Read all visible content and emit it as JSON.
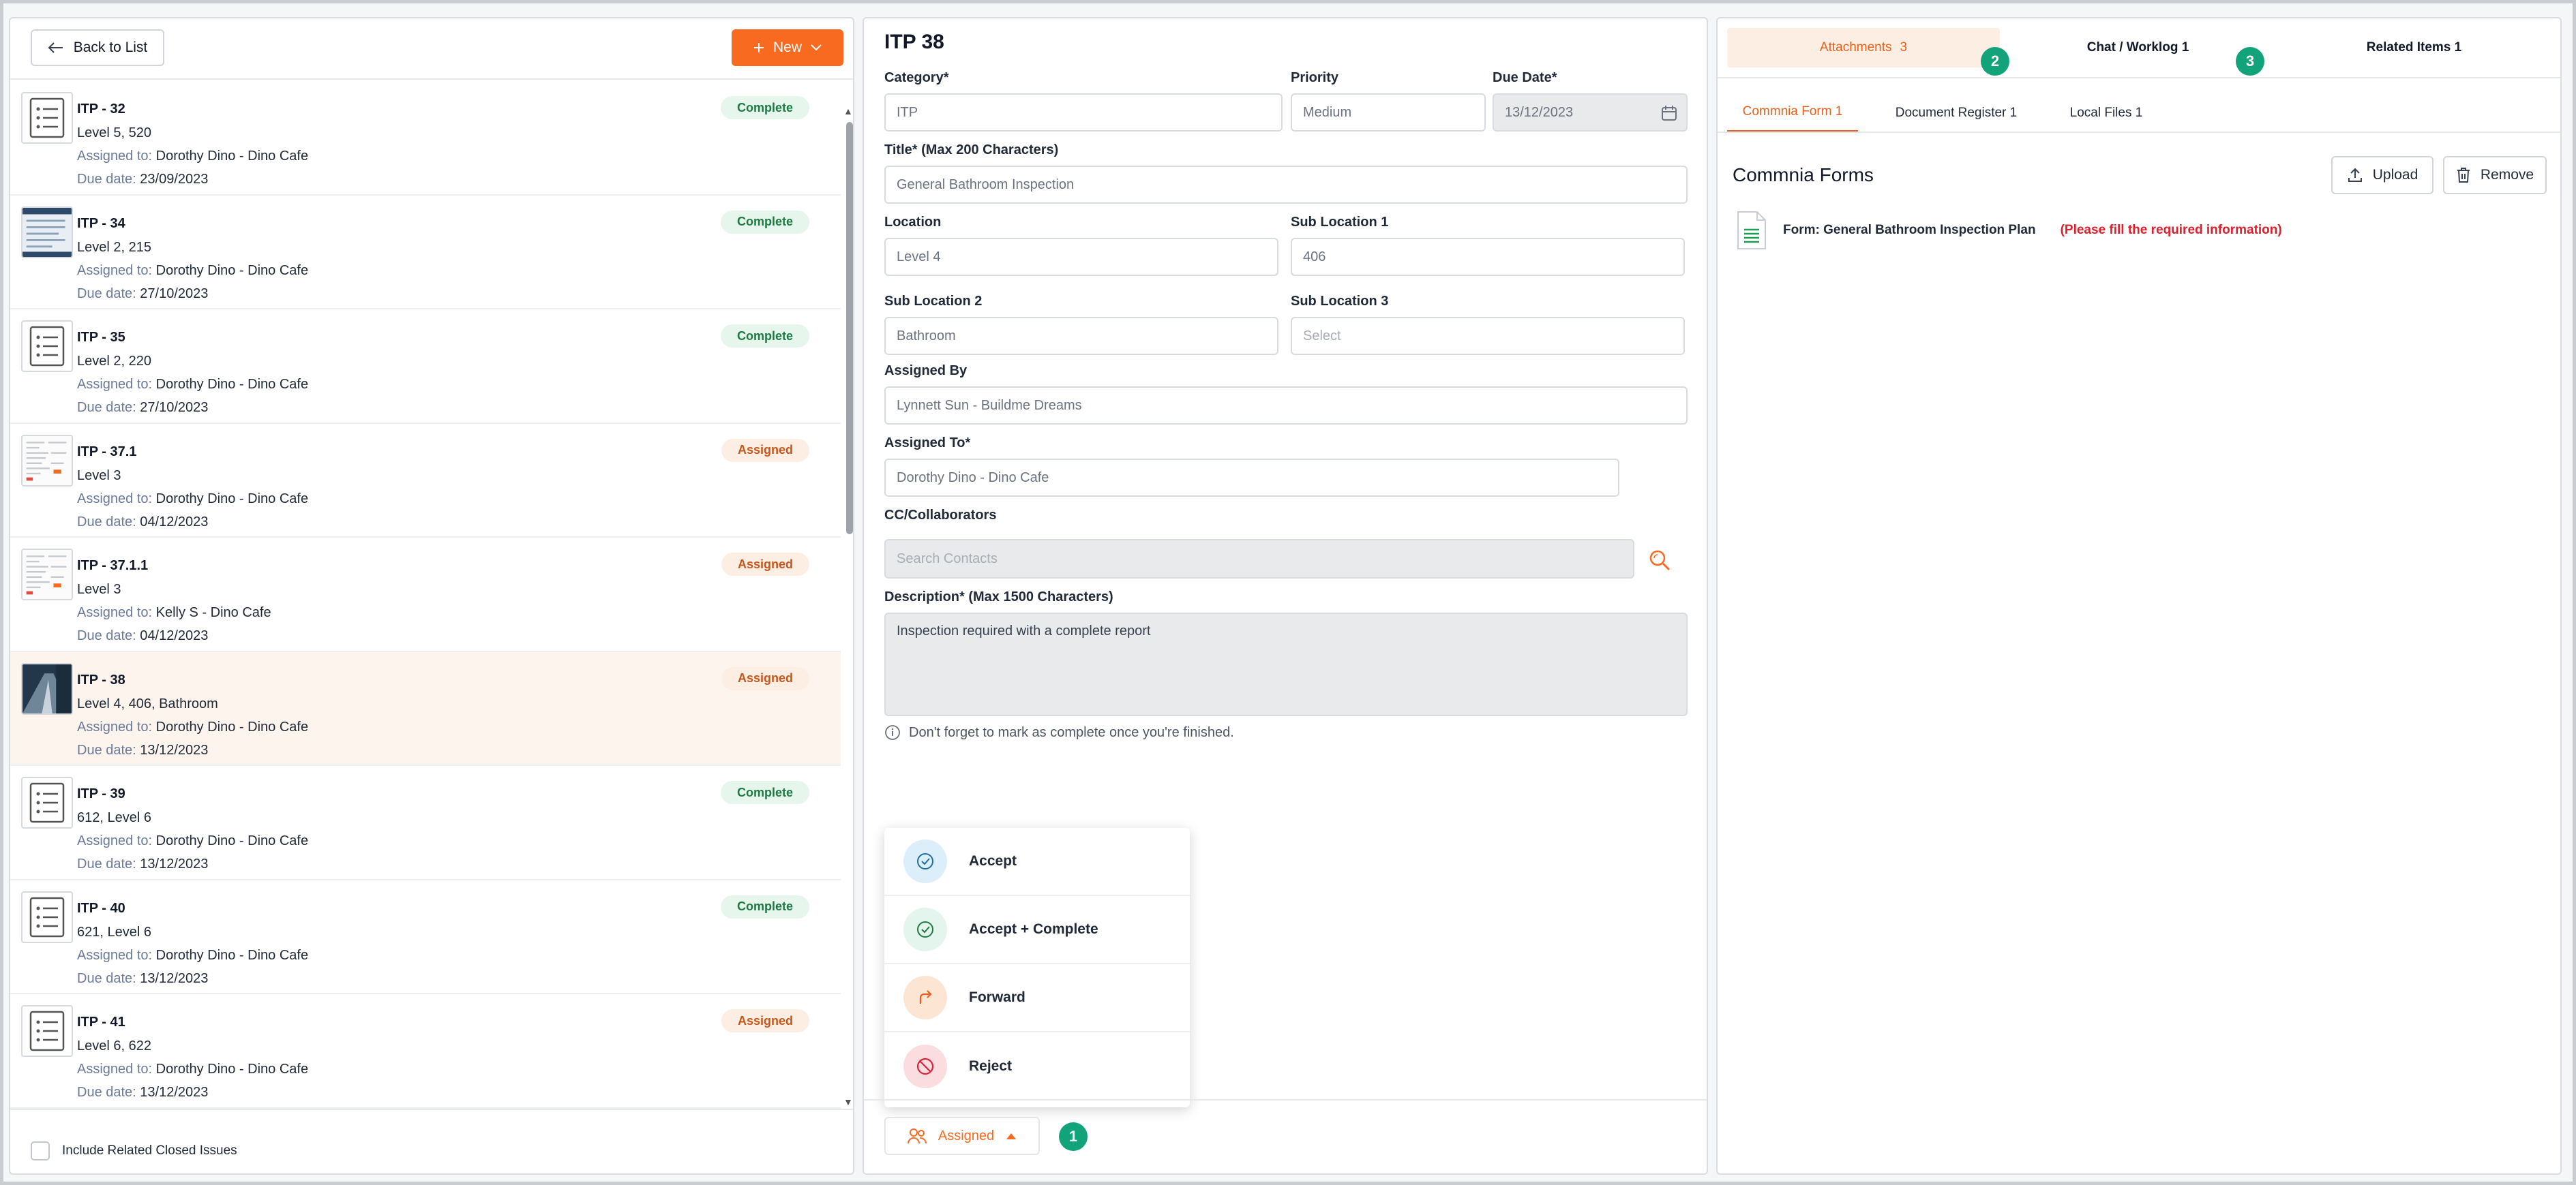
{
  "left_panel": {
    "back_label": "Back to List",
    "new_label": "New",
    "items": [
      {
        "title": "ITP - 32",
        "location": "Level 5, 520",
        "assigned_label": "Assigned to:",
        "assigned": "Dorothy Dino - Dino Cafe",
        "due_label": "Due date:",
        "due": "23/09/2023",
        "status": "Complete",
        "thumb": "list-doc-icon"
      },
      {
        "title": "ITP - 34",
        "location": "Level 2, 215",
        "assigned_label": "Assigned to:",
        "assigned": "Dorothy Dino - Dino Cafe",
        "due_label": "Due date:",
        "due": "27/10/2023",
        "status": "Complete",
        "thumb": "screenshot-thumbnail"
      },
      {
        "title": "ITP - 35",
        "location": "Level 2, 220",
        "assigned_label": "Assigned to:",
        "assigned": "Dorothy Dino - Dino Cafe",
        "due_label": "Due date:",
        "due": "27/10/2023",
        "status": "Complete",
        "thumb": "list-doc-icon"
      },
      {
        "title": "ITP - 37.1",
        "location": "Level 3",
        "assigned_label": "Assigned to:",
        "assigned": "Dorothy Dino - Dino Cafe",
        "due_label": "Due date:",
        "due": "04/12/2023",
        "status": "Assigned",
        "thumb": "document-thumbnail"
      },
      {
        "title": "ITP - 37.1.1",
        "location": "Level 3",
        "assigned_label": "Assigned to:",
        "assigned": "Kelly S - Dino Cafe",
        "due_label": "Due date:",
        "due": "04/12/2023",
        "status": "Assigned",
        "thumb": "document-thumbnail"
      },
      {
        "title": "ITP - 38",
        "location": "Level 4, 406, Bathroom",
        "assigned_label": "Assigned to:",
        "assigned": "Dorothy Dino - Dino Cafe",
        "due_label": "Due date:",
        "due": "13/12/2023",
        "status": "Assigned",
        "thumb": "photo-thumbnail"
      },
      {
        "title": "ITP - 39",
        "location": "612, Level 6",
        "assigned_label": "Assigned to:",
        "assigned": "Dorothy Dino - Dino Cafe",
        "due_label": "Due date:",
        "due": "13/12/2023",
        "status": "Complete",
        "thumb": "list-doc-icon"
      },
      {
        "title": "ITP - 40",
        "location": "621, Level 6",
        "assigned_label": "Assigned to:",
        "assigned": "Dorothy Dino - Dino Cafe",
        "due_label": "Due date:",
        "due": "13/12/2023",
        "status": "Complete",
        "thumb": "list-doc-icon"
      },
      {
        "title": "ITP - 41",
        "location": "Level 6, 622",
        "assigned_label": "Assigned to:",
        "assigned": "Dorothy Dino - Dino Cafe",
        "due_label": "Due date:",
        "due": "13/12/2023",
        "status": "Assigned",
        "thumb": "list-doc-icon"
      }
    ],
    "include_closed_label": "Include Related Closed Issues"
  },
  "detail": {
    "title": "ITP 38",
    "category_label": "Category*",
    "category_value": "ITP",
    "priority_label": "Priority",
    "priority_value": "Medium",
    "due_label": "Due Date*",
    "due_value": "13/12/2023",
    "title_field_label": "Title* (Max 200 Characters)",
    "title_field_value": "General Bathroom Inspection",
    "location_label": "Location",
    "location_value": "Level 4",
    "sub_location1_label": "Sub Location 1",
    "sub_location1_value": "406",
    "sub_location2_label": "Sub Location 2",
    "sub_location2_value": "Bathroom",
    "sub_location3_label": "Sub Location 3",
    "sub_location3_placeholder": "Select",
    "assigned_by_label": "Assigned By",
    "assigned_by_value": "Lynnett Sun - Buildme Dreams",
    "assigned_to_label": "Assigned To*",
    "assigned_to_value": "Dorothy Dino - Dino Cafe",
    "cc_label": "CC/Collaborators",
    "cc_placeholder": "Search Contacts",
    "description_label": "Description* (Max 1500 Characters)",
    "description_value": "Inspection required with a complete report",
    "hint": "Don't forget to mark as complete once you're finished.",
    "status_button_label": "Assigned",
    "dropdown": [
      {
        "label": "Accept",
        "icon": "check-circle-icon",
        "bg": "#dbeef9",
        "fg": "#1f6f9e"
      },
      {
        "label": "Accept + Complete",
        "icon": "check-circle-icon",
        "bg": "#e3f5ec",
        "fg": "#1e7a43"
      },
      {
        "label": "Forward",
        "icon": "forward-arrow-icon",
        "bg": "#fde5d4",
        "fg": "#e8601c"
      },
      {
        "label": "Reject",
        "icon": "ban-icon",
        "bg": "#fbdde0",
        "fg": "#d9233a"
      }
    ]
  },
  "steps": {
    "one": "1",
    "two": "2",
    "three": "3"
  },
  "right_panel": {
    "tabs": [
      {
        "label": "Attachments",
        "count": "3"
      },
      {
        "label": "Chat / Worklog 1",
        "count": ""
      },
      {
        "label": "Related Items 1",
        "count": ""
      }
    ],
    "sub_tabs": [
      "Commnia Form 1",
      "Document Register 1",
      "Local Files 1"
    ],
    "heading": "Commnia Forms",
    "upload_label": "Upload",
    "remove_label": "Remove",
    "form_name": "Form: General Bathroom Inspection Plan",
    "form_warning": "(Please fill the required information)"
  },
  "colors": {
    "accent": "#f86a1f",
    "step_badge": "#13a37a",
    "complete_bg": "#e6f6ec",
    "assigned_bg": "#fdeee4",
    "warning": "#e11d2a"
  }
}
